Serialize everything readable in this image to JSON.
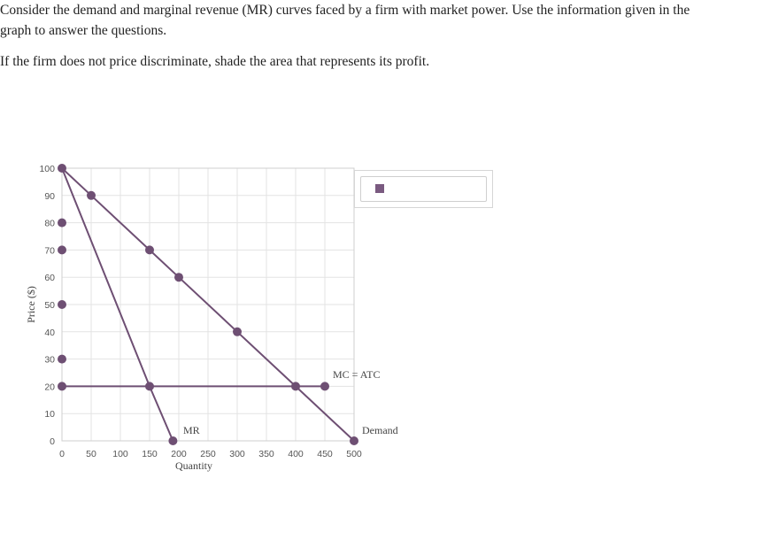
{
  "question": {
    "line1": "Consider the demand and marginal revenue (MR) curves faced by a firm with market power. Use the information given in the",
    "line2": "graph to answer the questions.",
    "line3": "If the firm does not price discriminate, shade the area that represents its profit."
  },
  "colors": {
    "curve": "#6e4f73",
    "point": "#6e4f73",
    "grid": "#e3e3e3",
    "swatch": "#7a5a80"
  },
  "legend": {
    "swatch_icon": "square-swatch-icon"
  },
  "chart_data": {
    "type": "line",
    "xlabel": "Quantity",
    "ylabel": "Price ($)",
    "xlim": [
      0,
      500
    ],
    "ylim": [
      0,
      100
    ],
    "x_ticks": [
      "0",
      "50",
      "100",
      "150",
      "200",
      "250",
      "300",
      "350",
      "400",
      "450",
      "500"
    ],
    "y_ticks": [
      "0",
      "10",
      "20",
      "30",
      "40",
      "50",
      "60",
      "70",
      "80",
      "90",
      "100"
    ],
    "grid": true,
    "series": [
      {
        "name": "Demand",
        "points": [
          [
            0,
            100
          ],
          [
            50,
            90
          ],
          [
            150,
            70
          ],
          [
            200,
            60
          ],
          [
            300,
            40
          ],
          [
            400,
            20
          ],
          [
            500,
            0
          ]
        ]
      },
      {
        "name": "MR",
        "points": [
          [
            0,
            100
          ],
          [
            150,
            20
          ],
          [
            190,
            0
          ]
        ]
      },
      {
        "name": "MC = ATC",
        "points": [
          [
            0,
            20
          ],
          [
            150,
            20
          ],
          [
            400,
            20
          ],
          [
            450,
            20
          ]
        ]
      }
    ],
    "y_axis_markers": [
      100,
      80,
      70,
      50,
      30,
      20
    ],
    "labels": {
      "mr": "MR",
      "mc_atc": "MC = ATC",
      "demand": "Demand"
    }
  }
}
